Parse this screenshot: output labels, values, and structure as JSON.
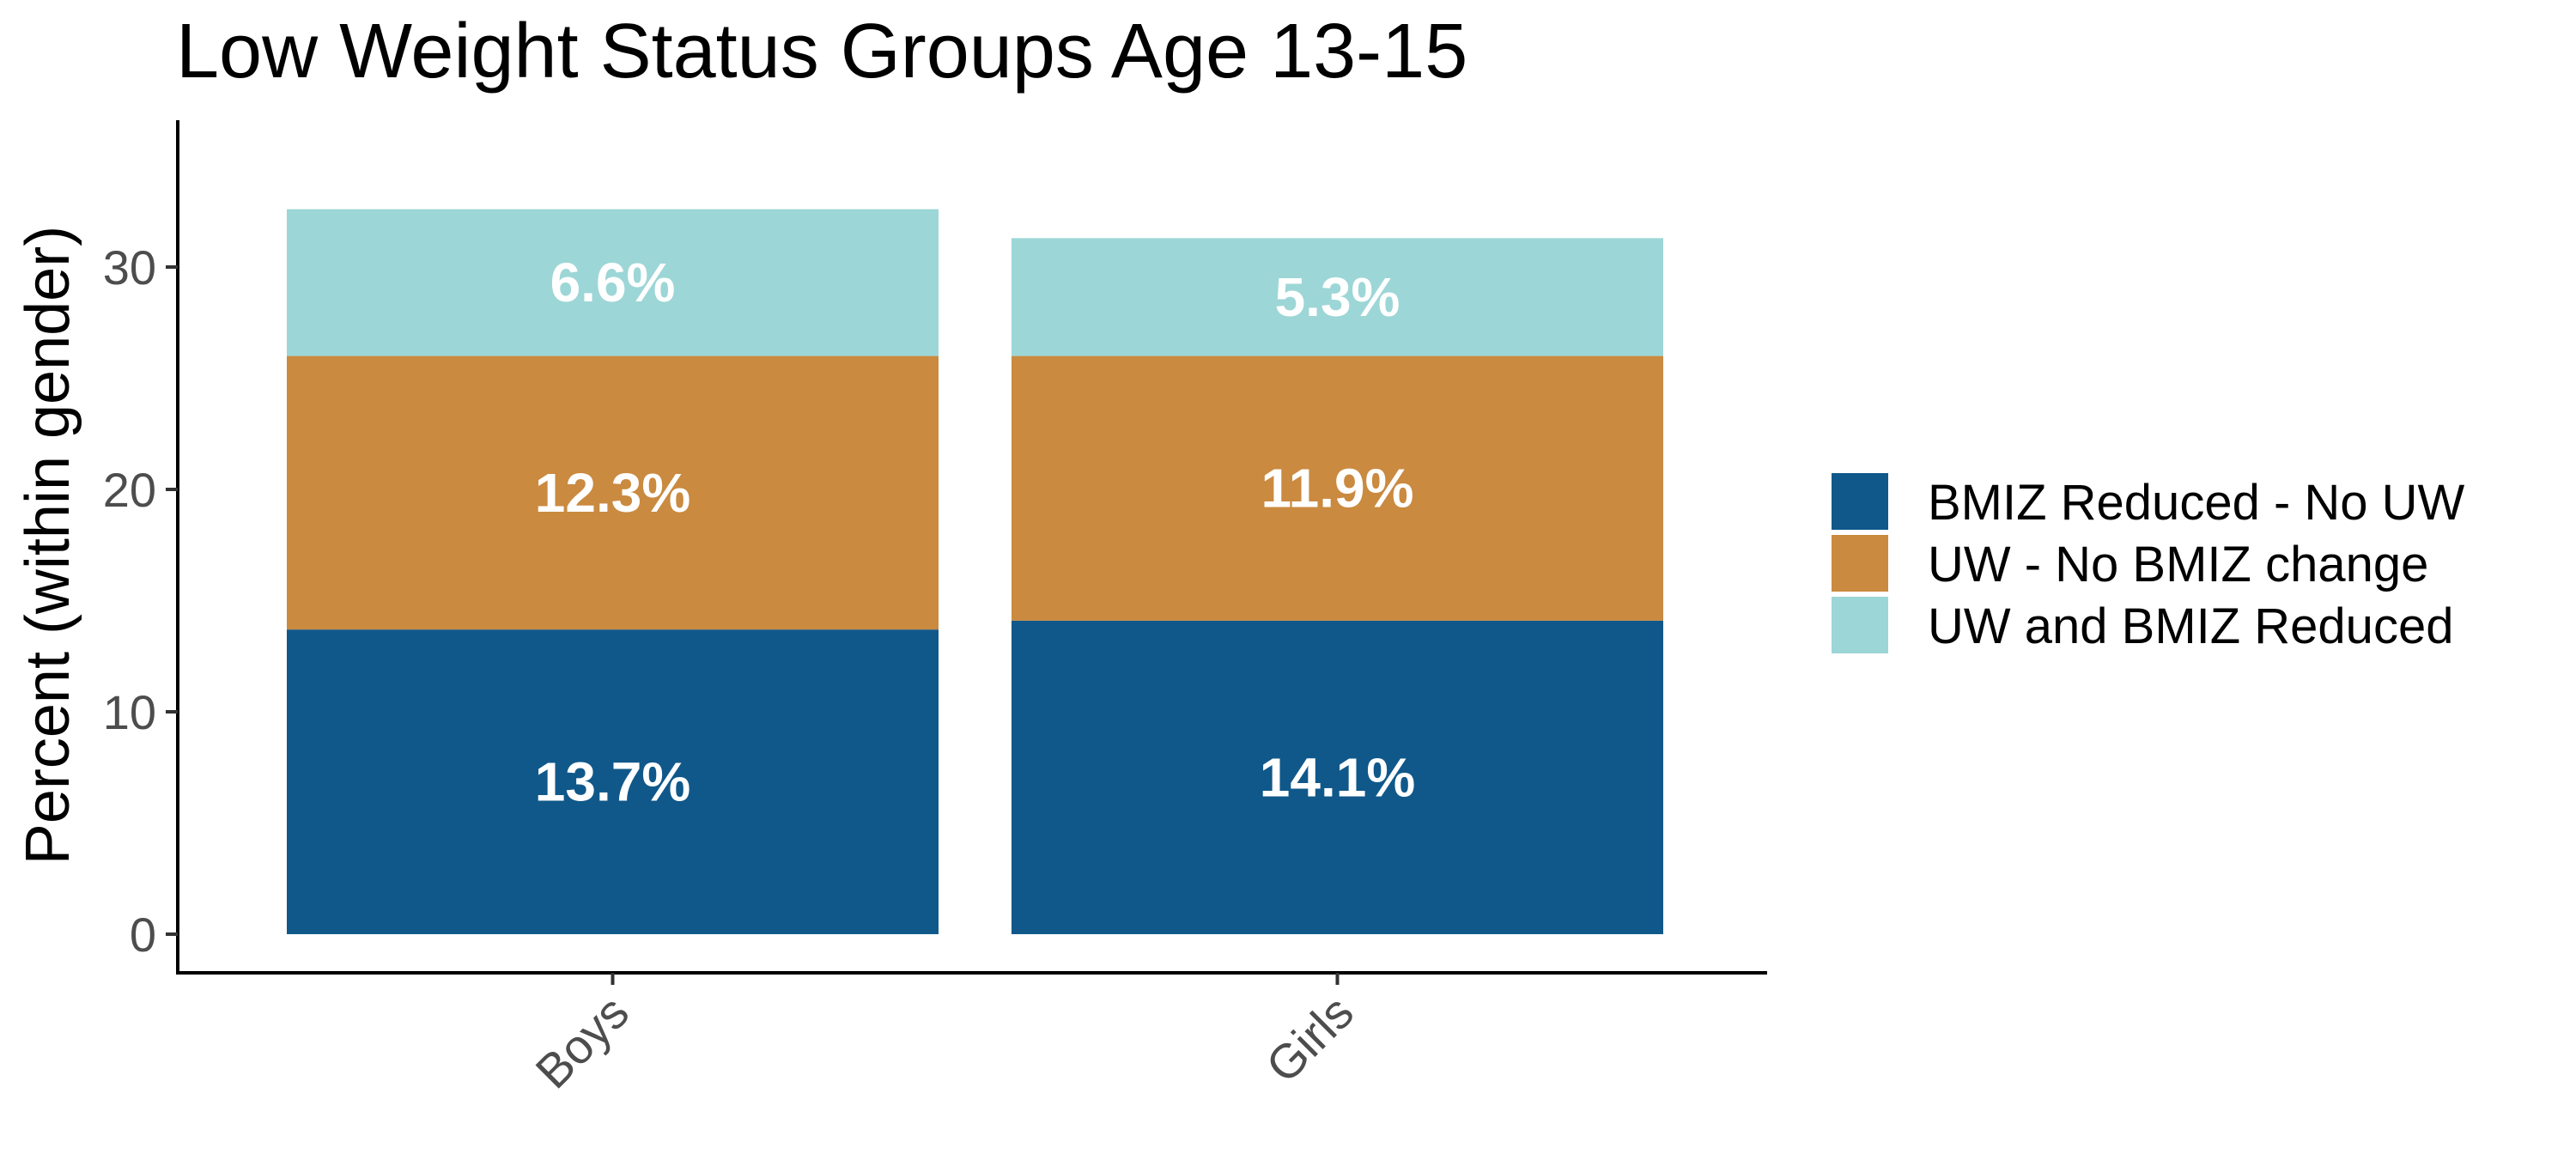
{
  "chart_data": {
    "type": "bar",
    "stacked": true,
    "title": "Low Weight Status Groups Age 13-15",
    "xlabel": "",
    "ylabel": "Percent (within gender)",
    "categories": [
      "Boys",
      "Girls"
    ],
    "ylim": [
      0,
      36.5
    ],
    "yticks": [
      0,
      10,
      20,
      30
    ],
    "grid": false,
    "legend_position": "right",
    "series": [
      {
        "name": "BMIZ Reduced - No UW",
        "color": "#10588A",
        "values": [
          13.7,
          14.1
        ],
        "labels": [
          "13.7%",
          "14.1%"
        ]
      },
      {
        "name": "UW - No BMIZ change",
        "color": "#CA8A3F",
        "values": [
          12.3,
          11.9
        ],
        "labels": [
          "12.3%",
          "11.9%"
        ]
      },
      {
        "name": "UW and BMIZ Reduced",
        "color": "#9DD6D7",
        "values": [
          6.6,
          5.3
        ],
        "labels": [
          "6.6%",
          "5.3%"
        ]
      }
    ]
  }
}
